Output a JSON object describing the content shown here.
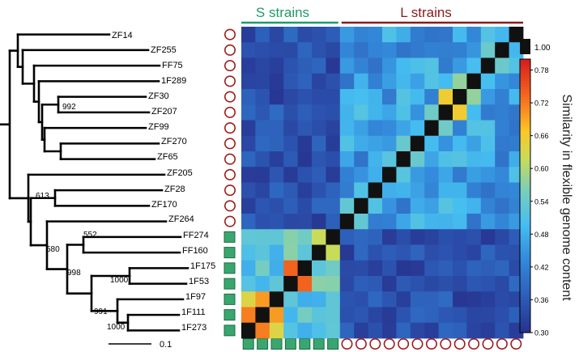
{
  "chart_data": {
    "type": "heatmap",
    "xlabel": "",
    "ylabel": "",
    "colorbar": {
      "label": "Similarity in flexible genome content",
      "ticks": [
        "0.30",
        "0.36",
        "0.42",
        "0.48",
        "0.54",
        "0.60",
        "0.66",
        "0.72",
        "0.78"
      ],
      "range": [
        0.3,
        0.8
      ],
      "diagonal_label": "1.00"
    },
    "group_labels": [
      {
        "name": "S strains",
        "color": "#1f9a6a"
      },
      {
        "name": "L strains",
        "color": "#8b1a1a"
      }
    ],
    "strains": [
      "ZF14",
      "ZF255",
      "FF75",
      "1F289",
      "ZF30",
      "ZF207",
      "ZF99",
      "ZF270",
      "ZF65",
      "ZF205",
      "ZF28",
      "ZF170",
      "ZF264",
      "FF274",
      "FF160",
      "1F175",
      "1F53",
      "1F97",
      "1F111",
      "1F273"
    ],
    "strain_groups": [
      "L",
      "L",
      "L",
      "L",
      "L",
      "L",
      "L",
      "L",
      "L",
      "L",
      "L",
      "L",
      "L",
      "S",
      "S",
      "S",
      "S",
      "S",
      "S",
      "S"
    ],
    "bootstrap_values": [
      "992",
      "613",
      "552",
      "580",
      "998",
      "1000",
      "991",
      "1000"
    ],
    "scale_bar_label": "0.1"
  }
}
